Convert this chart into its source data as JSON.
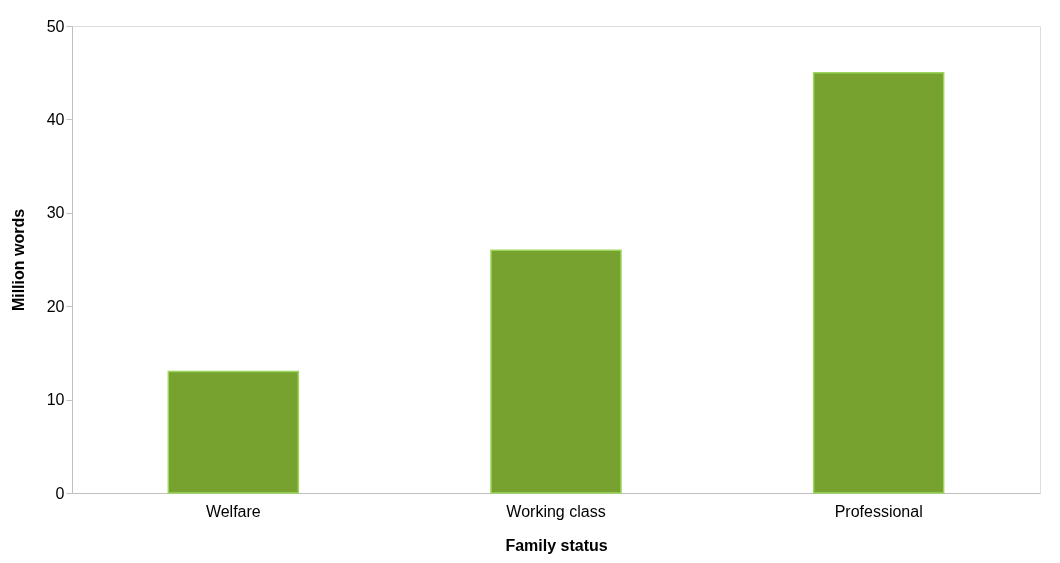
{
  "chart_data": {
    "type": "bar",
    "xlabel": "Family status",
    "ylabel": "Million words",
    "categories": [
      "Welfare",
      "Working class",
      "Professional"
    ],
    "values": [
      13,
      26,
      45
    ],
    "color": "#77a22f",
    "ylim": [
      0,
      50
    ],
    "yticks": [
      0,
      10,
      20,
      30,
      40,
      50
    ],
    "grid": false
  }
}
